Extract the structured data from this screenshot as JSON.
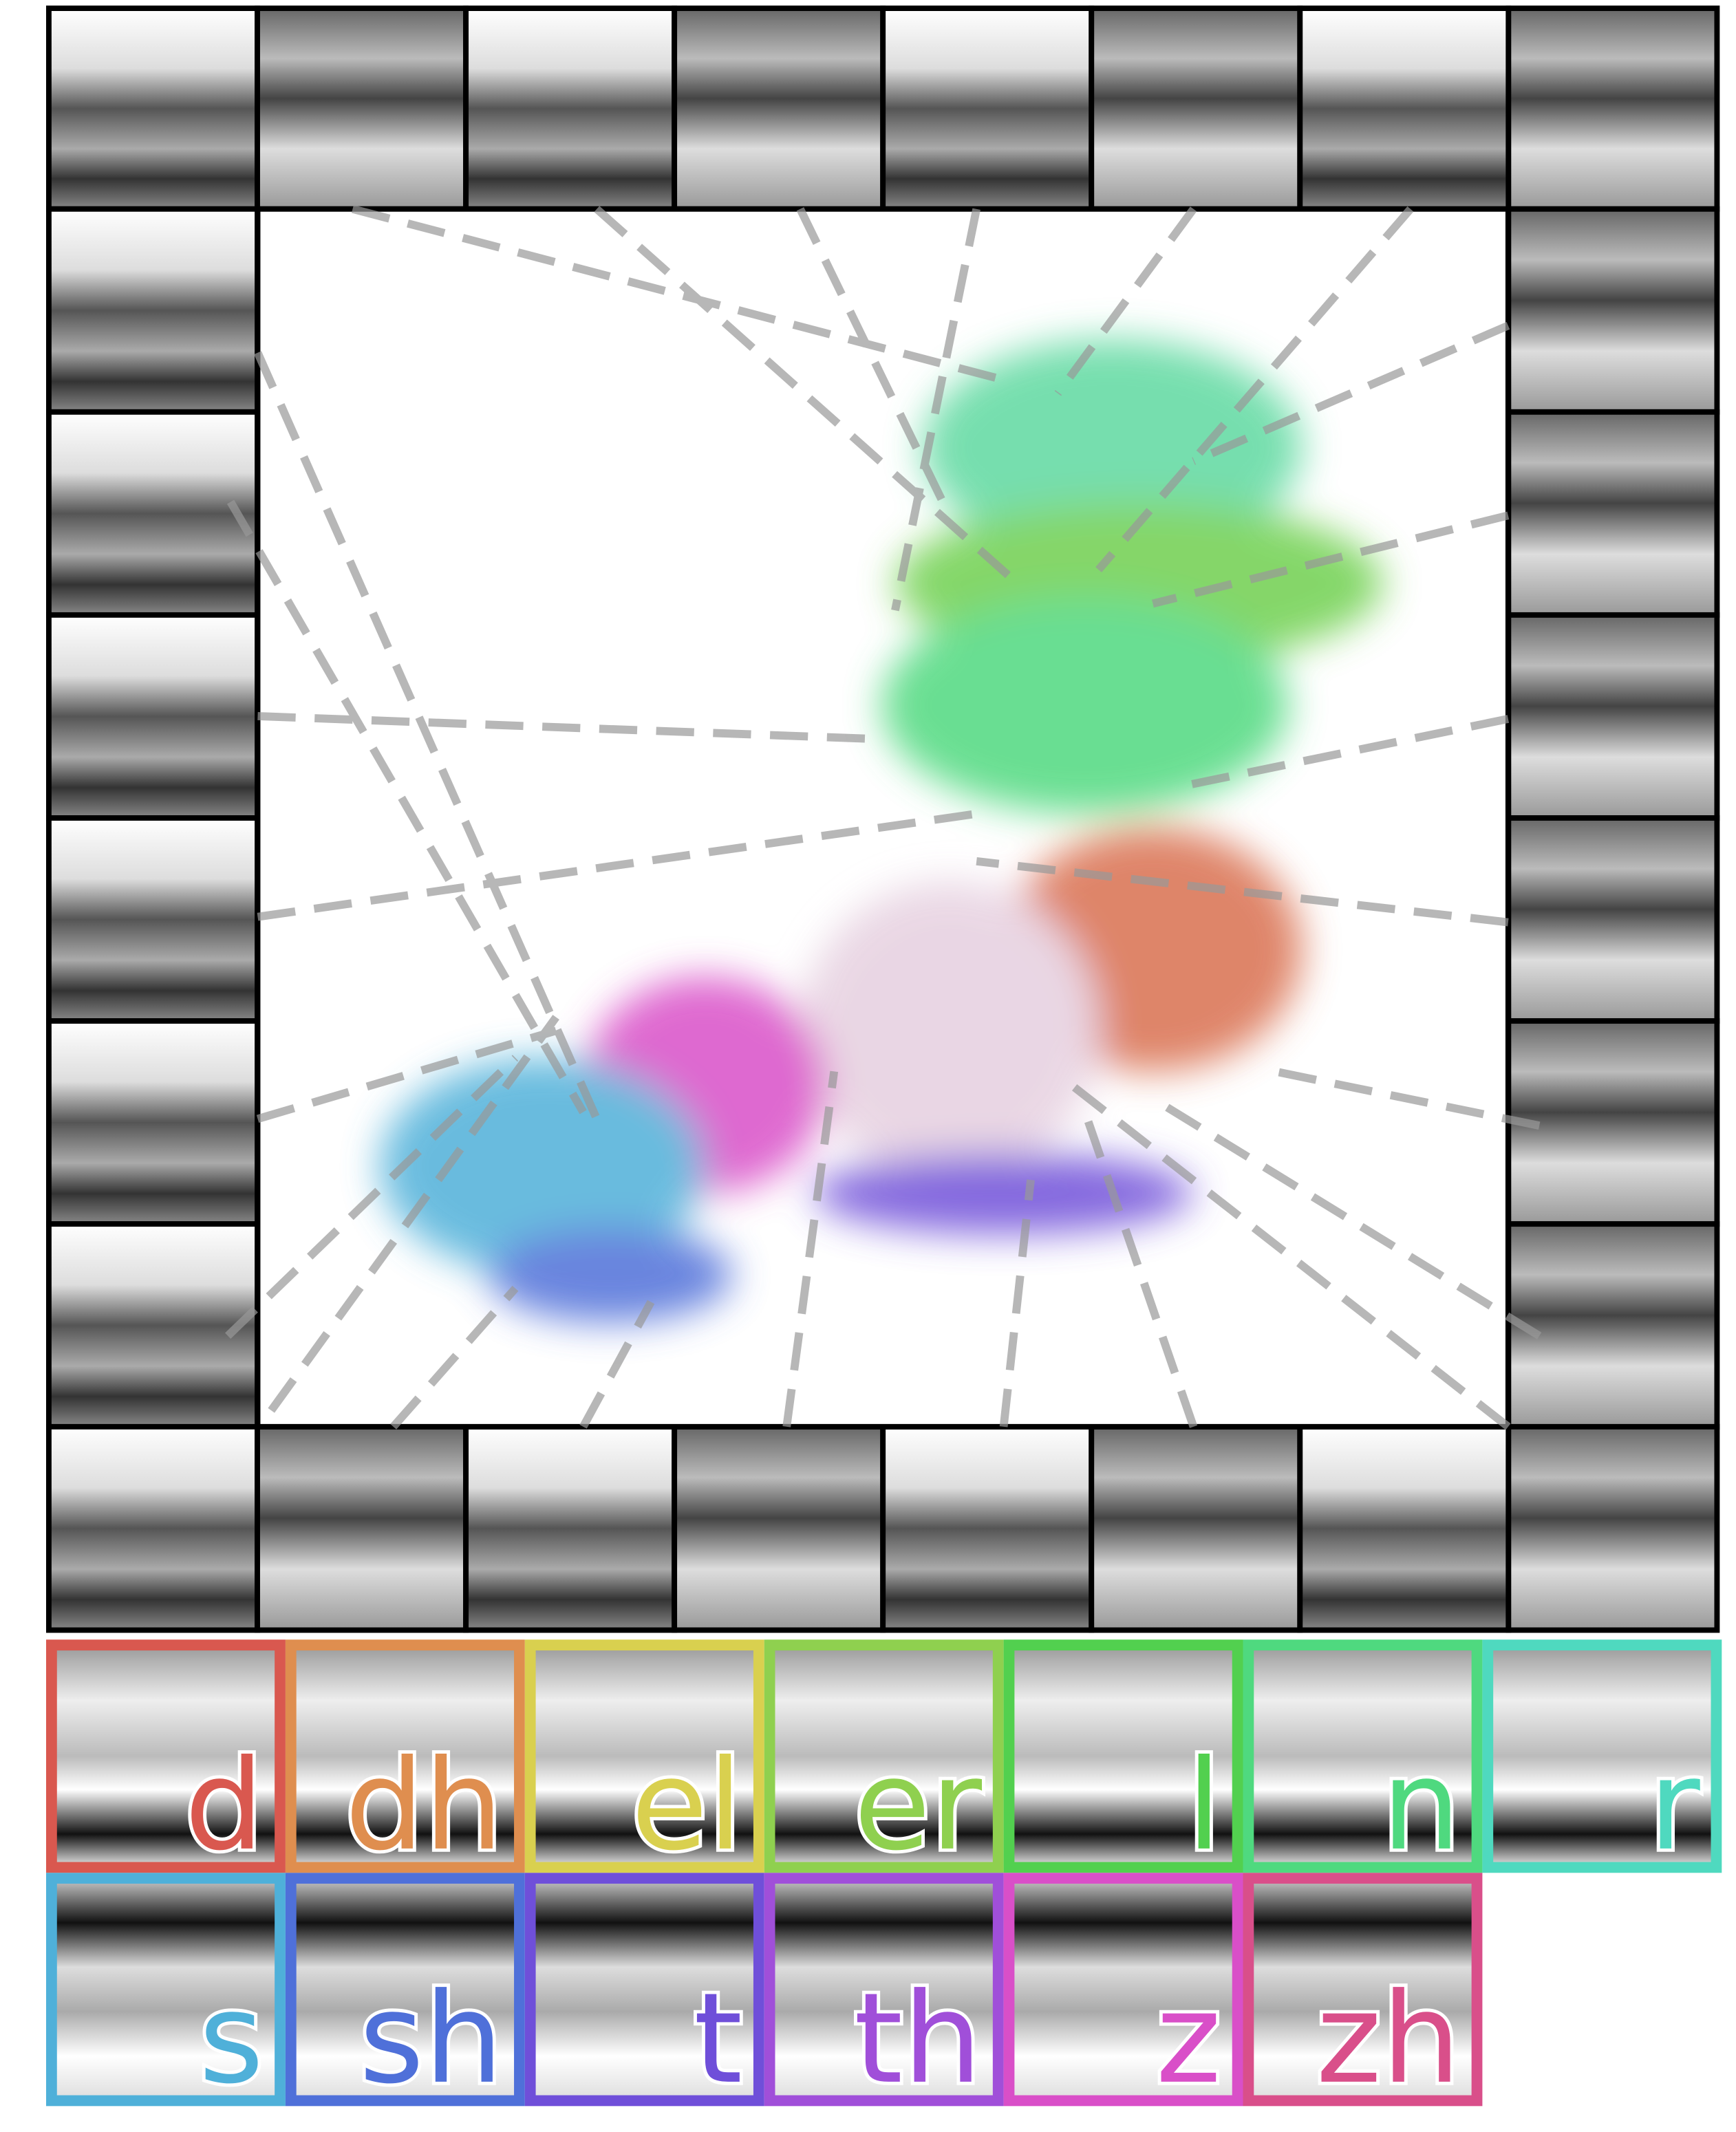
{
  "legend": {
    "items": [
      {
        "label": "d",
        "color": "#d9584f"
      },
      {
        "label": "dh",
        "color": "#df8e4f"
      },
      {
        "label": "el",
        "color": "#d9d04f"
      },
      {
        "label": "er",
        "color": "#8fd04f"
      },
      {
        "label": "l",
        "color": "#52d04f"
      },
      {
        "label": "n",
        "color": "#4fd97f"
      },
      {
        "label": "r",
        "color": "#4fd9bf"
      },
      {
        "label": "s",
        "color": "#4fb0d9"
      },
      {
        "label": "sh",
        "color": "#4f70d9"
      },
      {
        "label": "t",
        "color": "#6f4fd9"
      },
      {
        "label": "th",
        "color": "#a04fd9"
      },
      {
        "label": "z",
        "color": "#d94fc8"
      },
      {
        "label": "zh",
        "color": "#d94f8a"
      }
    ]
  }
}
